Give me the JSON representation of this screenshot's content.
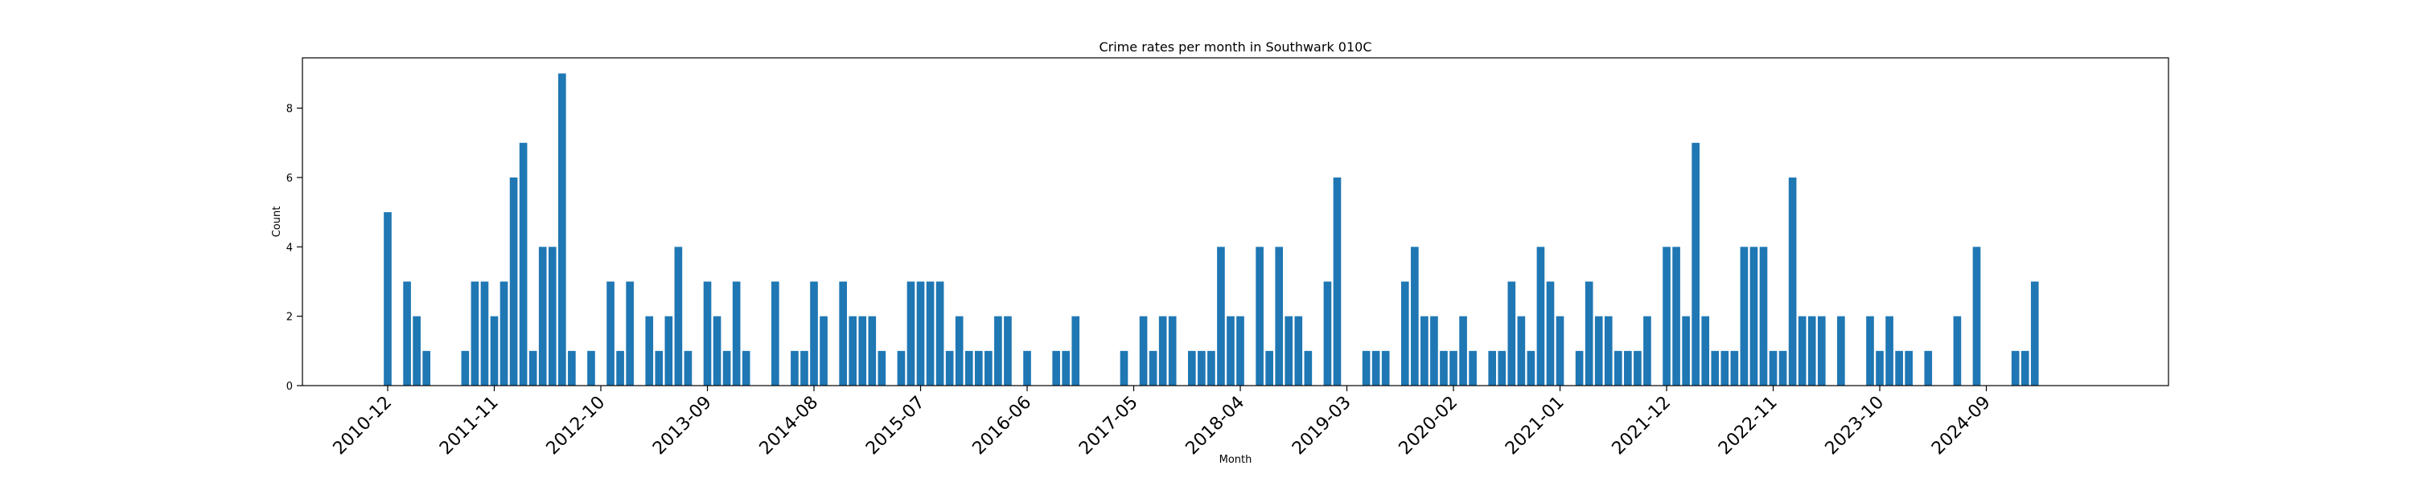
{
  "chart_data": {
    "type": "bar",
    "title": "Crime rates per month in Southwark 010C",
    "xlabel": "Month",
    "ylabel": "Count",
    "start_month": "2010-12",
    "months_count": 166,
    "xlim": [
      -8.8,
      183.8
    ],
    "ylim": [
      0,
      9.45
    ],
    "y_ticks": [
      0,
      2,
      4,
      6,
      8
    ],
    "x_tick_labels": [
      "2010-12",
      "2011-11",
      "2012-10",
      "2013-09",
      "2014-08",
      "2015-07",
      "2016-06",
      "2017-05",
      "2018-04",
      "2019-03",
      "2020-02",
      "2021-01",
      "2021-12",
      "2022-11",
      "2023-10",
      "2024-09"
    ],
    "grid": false,
    "bar_color": "#1f77b4",
    "points": [
      {
        "month": "2010-12",
        "value": 5
      },
      {
        "month": "2011-02",
        "value": 3
      },
      {
        "month": "2011-03",
        "value": 2
      },
      {
        "month": "2011-04",
        "value": 1
      },
      {
        "month": "2011-08",
        "value": 1
      },
      {
        "month": "2011-09",
        "value": 3
      },
      {
        "month": "2011-10",
        "value": 3
      },
      {
        "month": "2011-11",
        "value": 2
      },
      {
        "month": "2011-12",
        "value": 3
      },
      {
        "month": "2012-01",
        "value": 6
      },
      {
        "month": "2012-02",
        "value": 7
      },
      {
        "month": "2012-03",
        "value": 1
      },
      {
        "month": "2012-04",
        "value": 4
      },
      {
        "month": "2012-05",
        "value": 4
      },
      {
        "month": "2012-06",
        "value": 9
      },
      {
        "month": "2012-07",
        "value": 1
      },
      {
        "month": "2012-09",
        "value": 1
      },
      {
        "month": "2012-11",
        "value": 3
      },
      {
        "month": "2012-12",
        "value": 1
      },
      {
        "month": "2013-01",
        "value": 3
      },
      {
        "month": "2013-03",
        "value": 2
      },
      {
        "month": "2013-04",
        "value": 1
      },
      {
        "month": "2013-05",
        "value": 2
      },
      {
        "month": "2013-06",
        "value": 4
      },
      {
        "month": "2013-07",
        "value": 1
      },
      {
        "month": "2013-09",
        "value": 3
      },
      {
        "month": "2013-10",
        "value": 2
      },
      {
        "month": "2013-11",
        "value": 1
      },
      {
        "month": "2013-12",
        "value": 3
      },
      {
        "month": "2014-01",
        "value": 1
      },
      {
        "month": "2014-04",
        "value": 3
      },
      {
        "month": "2014-06",
        "value": 1
      },
      {
        "month": "2014-07",
        "value": 1
      },
      {
        "month": "2014-08",
        "value": 3
      },
      {
        "month": "2014-09",
        "value": 2
      },
      {
        "month": "2014-11",
        "value": 3
      },
      {
        "month": "2014-12",
        "value": 2
      },
      {
        "month": "2015-01",
        "value": 2
      },
      {
        "month": "2015-02",
        "value": 2
      },
      {
        "month": "2015-03",
        "value": 1
      },
      {
        "month": "2015-05",
        "value": 1
      },
      {
        "month": "2015-06",
        "value": 3
      },
      {
        "month": "2015-07",
        "value": 3
      },
      {
        "month": "2015-08",
        "value": 3
      },
      {
        "month": "2015-09",
        "value": 3
      },
      {
        "month": "2015-10",
        "value": 1
      },
      {
        "month": "2015-11",
        "value": 2
      },
      {
        "month": "2015-12",
        "value": 1
      },
      {
        "month": "2016-01",
        "value": 1
      },
      {
        "month": "2016-02",
        "value": 1
      },
      {
        "month": "2016-03",
        "value": 2
      },
      {
        "month": "2016-04",
        "value": 2
      },
      {
        "month": "2016-06",
        "value": 1
      },
      {
        "month": "2016-09",
        "value": 1
      },
      {
        "month": "2016-10",
        "value": 1
      },
      {
        "month": "2016-11",
        "value": 2
      },
      {
        "month": "2017-04",
        "value": 1
      },
      {
        "month": "2017-06",
        "value": 2
      },
      {
        "month": "2017-07",
        "value": 1
      },
      {
        "month": "2017-08",
        "value": 2
      },
      {
        "month": "2017-09",
        "value": 2
      },
      {
        "month": "2017-11",
        "value": 1
      },
      {
        "month": "2017-12",
        "value": 1
      },
      {
        "month": "2018-01",
        "value": 1
      },
      {
        "month": "2018-02",
        "value": 4
      },
      {
        "month": "2018-03",
        "value": 2
      },
      {
        "month": "2018-04",
        "value": 2
      },
      {
        "month": "2018-06",
        "value": 4
      },
      {
        "month": "2018-07",
        "value": 1
      },
      {
        "month": "2018-08",
        "value": 4
      },
      {
        "month": "2018-09",
        "value": 2
      },
      {
        "month": "2018-10",
        "value": 2
      },
      {
        "month": "2018-11",
        "value": 1
      },
      {
        "month": "2019-01",
        "value": 3
      },
      {
        "month": "2019-02",
        "value": 6
      },
      {
        "month": "2019-05",
        "value": 1
      },
      {
        "month": "2019-06",
        "value": 1
      },
      {
        "month": "2019-07",
        "value": 1
      },
      {
        "month": "2019-09",
        "value": 3
      },
      {
        "month": "2019-10",
        "value": 4
      },
      {
        "month": "2019-11",
        "value": 2
      },
      {
        "month": "2019-12",
        "value": 2
      },
      {
        "month": "2020-01",
        "value": 1
      },
      {
        "month": "2020-02",
        "value": 1
      },
      {
        "month": "2020-03",
        "value": 2
      },
      {
        "month": "2020-04",
        "value": 1
      },
      {
        "month": "2020-06",
        "value": 1
      },
      {
        "month": "2020-07",
        "value": 1
      },
      {
        "month": "2020-08",
        "value": 3
      },
      {
        "month": "2020-09",
        "value": 2
      },
      {
        "month": "2020-10",
        "value": 1
      },
      {
        "month": "2020-11",
        "value": 4
      },
      {
        "month": "2020-12",
        "value": 3
      },
      {
        "month": "2021-01",
        "value": 2
      },
      {
        "month": "2021-03",
        "value": 1
      },
      {
        "month": "2021-04",
        "value": 3
      },
      {
        "month": "2021-05",
        "value": 2
      },
      {
        "month": "2021-06",
        "value": 2
      },
      {
        "month": "2021-07",
        "value": 1
      },
      {
        "month": "2021-08",
        "value": 1
      },
      {
        "month": "2021-09",
        "value": 1
      },
      {
        "month": "2021-10",
        "value": 2
      },
      {
        "month": "2021-12",
        "value": 4
      },
      {
        "month": "2022-01",
        "value": 4
      },
      {
        "month": "2022-02",
        "value": 2
      },
      {
        "month": "2022-03",
        "value": 7
      },
      {
        "month": "2022-04",
        "value": 2
      },
      {
        "month": "2022-05",
        "value": 1
      },
      {
        "month": "2022-06",
        "value": 1
      },
      {
        "month": "2022-07",
        "value": 1
      },
      {
        "month": "2022-08",
        "value": 4
      },
      {
        "month": "2022-09",
        "value": 4
      },
      {
        "month": "2022-10",
        "value": 4
      },
      {
        "month": "2022-11",
        "value": 1
      },
      {
        "month": "2022-12",
        "value": 1
      },
      {
        "month": "2023-01",
        "value": 6
      },
      {
        "month": "2023-02",
        "value": 2
      },
      {
        "month": "2023-03",
        "value": 2
      },
      {
        "month": "2023-04",
        "value": 2
      },
      {
        "month": "2023-06",
        "value": 2
      },
      {
        "month": "2023-09",
        "value": 2
      },
      {
        "month": "2023-10",
        "value": 1
      },
      {
        "month": "2023-11",
        "value": 2
      },
      {
        "month": "2023-12",
        "value": 1
      },
      {
        "month": "2024-01",
        "value": 1
      },
      {
        "month": "2024-03",
        "value": 1
      },
      {
        "month": "2024-06",
        "value": 2
      },
      {
        "month": "2024-08",
        "value": 4
      },
      {
        "month": "2024-12",
        "value": 1
      },
      {
        "month": "2025-01",
        "value": 1
      },
      {
        "month": "2025-02",
        "value": 3
      }
    ]
  }
}
